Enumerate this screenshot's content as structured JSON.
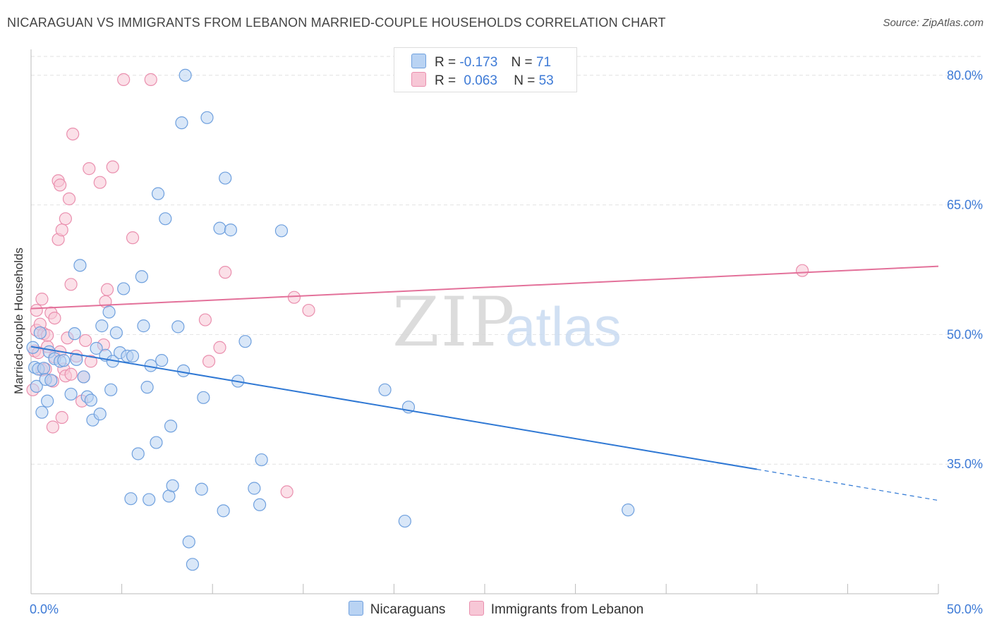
{
  "title": "NICARAGUAN VS IMMIGRANTS FROM LEBANON MARRIED-COUPLE HOUSEHOLDS CORRELATION CHART",
  "source": "Source: ZipAtlas.com",
  "watermark": {
    "zip": "ZIP",
    "atlas": "atlas"
  },
  "legend_top": [
    {
      "r_label": "R =",
      "r_value": "-0.173",
      "n_label": "N =",
      "n_value": "71"
    },
    {
      "r_label": "R =",
      "r_value": "0.063",
      "n_label": "N =",
      "n_value": "53"
    }
  ],
  "legend_bottom": [
    "Nicaraguans",
    "Immigrants from Lebanon"
  ],
  "colors": {
    "blue_fill": "#b9d3f3",
    "blue_stroke": "#6fa0de",
    "blue_line": "#2f78d4",
    "pink_fill": "#f7c7d6",
    "pink_stroke": "#ea8fae",
    "pink_line": "#e3719a",
    "axis_text": "#3d7ad6",
    "grid": "#e2e2e2"
  },
  "chart_data": {
    "type": "scatter",
    "title": "NICARAGUAN VS IMMIGRANTS FROM LEBANON MARRIED-COUPLE HOUSEHOLDS CORRELATION CHART",
    "xlabel": "",
    "ylabel": "Married-couple Households",
    "xlim": [
      0,
      50
    ],
    "ylim": [
      20,
      83
    ],
    "x_tick_labels": [
      "0.0%",
      "50.0%"
    ],
    "y_ticks": [
      35,
      50,
      65,
      80
    ],
    "y_tick_labels": [
      "35.0%",
      "50.0%",
      "65.0%",
      "80.0%"
    ],
    "series": [
      {
        "name": "Nicaraguans",
        "r": -0.173,
        "n": 71,
        "trend": {
          "x0": 0,
          "y0": 48.6,
          "x1": 40,
          "y1": 34.4,
          "dashed_to_x": 50,
          "dashed_to_y": 30.8
        },
        "points": [
          [
            0.2,
            46.2
          ],
          [
            0.3,
            44.0
          ],
          [
            0.4,
            46.0
          ],
          [
            0.5,
            50.2
          ],
          [
            0.7,
            46.1
          ],
          [
            0.8,
            44.8
          ],
          [
            0.9,
            42.3
          ],
          [
            1.0,
            48.0
          ],
          [
            1.1,
            44.7
          ],
          [
            1.3,
            47.2
          ],
          [
            1.6,
            46.9
          ],
          [
            1.8,
            47.0
          ],
          [
            2.2,
            43.1
          ],
          [
            2.4,
            50.1
          ],
          [
            2.5,
            47.1
          ],
          [
            2.7,
            58.0
          ],
          [
            2.9,
            45.1
          ],
          [
            3.1,
            42.8
          ],
          [
            3.3,
            42.4
          ],
          [
            3.4,
            40.1
          ],
          [
            3.6,
            48.4
          ],
          [
            3.8,
            40.8
          ],
          [
            3.9,
            51.0
          ],
          [
            4.1,
            47.6
          ],
          [
            4.3,
            52.6
          ],
          [
            4.4,
            43.6
          ],
          [
            4.5,
            46.9
          ],
          [
            4.7,
            50.2
          ],
          [
            4.9,
            47.9
          ],
          [
            5.1,
            55.3
          ],
          [
            5.3,
            47.5
          ],
          [
            5.5,
            31.0
          ],
          [
            5.6,
            47.5
          ],
          [
            5.9,
            36.2
          ],
          [
            6.1,
            56.7
          ],
          [
            6.2,
            51.0
          ],
          [
            6.4,
            43.9
          ],
          [
            6.5,
            30.9
          ],
          [
            6.6,
            46.4
          ],
          [
            6.9,
            37.5
          ],
          [
            7.0,
            66.3
          ],
          [
            7.2,
            47.0
          ],
          [
            7.4,
            63.4
          ],
          [
            7.6,
            31.3
          ],
          [
            7.7,
            39.4
          ],
          [
            7.8,
            32.5
          ],
          [
            8.1,
            50.9
          ],
          [
            8.3,
            74.5
          ],
          [
            8.4,
            45.8
          ],
          [
            8.5,
            80.0
          ],
          [
            8.7,
            26.0
          ],
          [
            8.9,
            23.4
          ],
          [
            9.4,
            32.1
          ],
          [
            9.5,
            42.7
          ],
          [
            9.7,
            75.1
          ],
          [
            10.4,
            62.3
          ],
          [
            10.6,
            29.6
          ],
          [
            10.7,
            68.1
          ],
          [
            11.0,
            62.1
          ],
          [
            11.4,
            44.6
          ],
          [
            11.8,
            49.2
          ],
          [
            12.3,
            32.2
          ],
          [
            12.6,
            30.3
          ],
          [
            12.7,
            35.5
          ],
          [
            13.8,
            62.0
          ],
          [
            19.5,
            43.6
          ],
          [
            20.6,
            28.4
          ],
          [
            20.8,
            41.6
          ],
          [
            32.9,
            29.7
          ],
          [
            0.1,
            48.5
          ],
          [
            0.6,
            41.0
          ]
        ]
      },
      {
        "name": "Immigrants from Lebanon",
        "r": 0.063,
        "n": 53,
        "trend": {
          "x0": 0,
          "y0": 53.0,
          "x1": 50,
          "y1": 57.9
        },
        "points": [
          [
            0.1,
            43.6
          ],
          [
            0.2,
            48.1
          ],
          [
            0.3,
            50.5
          ],
          [
            0.3,
            52.8
          ],
          [
            0.4,
            47.9
          ],
          [
            0.5,
            51.2
          ],
          [
            0.6,
            54.1
          ],
          [
            0.6,
            45.9
          ],
          [
            0.7,
            50.1
          ],
          [
            0.8,
            46.0
          ],
          [
            0.9,
            48.6
          ],
          [
            1.1,
            52.5
          ],
          [
            1.2,
            44.6
          ],
          [
            1.2,
            39.3
          ],
          [
            1.3,
            51.9
          ],
          [
            1.3,
            47.4
          ],
          [
            1.5,
            61.0
          ],
          [
            1.5,
            67.8
          ],
          [
            1.6,
            67.3
          ],
          [
            1.7,
            62.1
          ],
          [
            1.7,
            40.4
          ],
          [
            1.8,
            46.0
          ],
          [
            1.9,
            45.2
          ],
          [
            1.9,
            63.4
          ],
          [
            2.0,
            49.6
          ],
          [
            2.1,
            65.7
          ],
          [
            2.2,
            55.8
          ],
          [
            2.2,
            45.4
          ],
          [
            2.3,
            73.2
          ],
          [
            2.5,
            47.5
          ],
          [
            2.8,
            42.3
          ],
          [
            2.9,
            45.1
          ],
          [
            3.0,
            49.3
          ],
          [
            3.2,
            69.2
          ],
          [
            3.3,
            46.9
          ],
          [
            3.8,
            67.6
          ],
          [
            4.0,
            48.8
          ],
          [
            4.1,
            53.8
          ],
          [
            4.2,
            55.2
          ],
          [
            4.5,
            69.4
          ],
          [
            5.1,
            79.5
          ],
          [
            5.6,
            61.2
          ],
          [
            6.6,
            79.5
          ],
          [
            9.6,
            51.7
          ],
          [
            9.8,
            46.9
          ],
          [
            10.4,
            48.5
          ],
          [
            10.7,
            57.2
          ],
          [
            14.1,
            31.8
          ],
          [
            14.5,
            54.3
          ],
          [
            15.3,
            52.8
          ],
          [
            42.5,
            57.4
          ],
          [
            0.9,
            49.9
          ],
          [
            1.6,
            48.0
          ]
        ]
      }
    ]
  }
}
